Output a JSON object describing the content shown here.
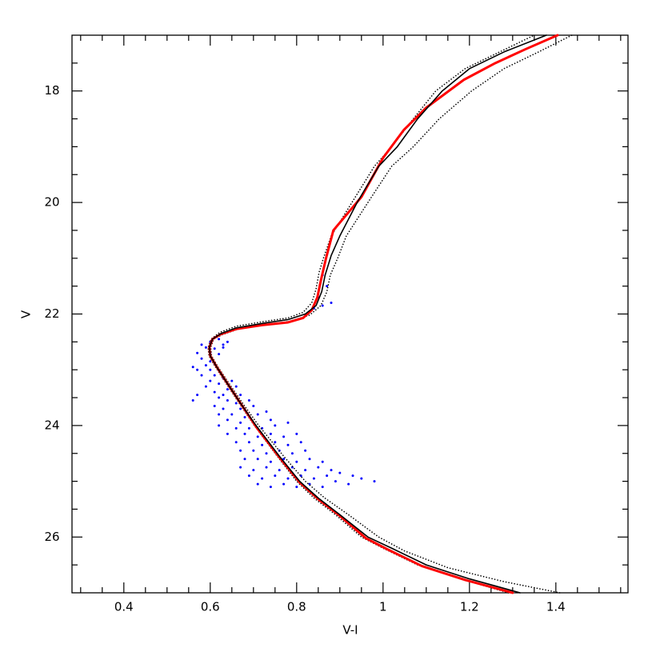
{
  "chart_data": {
    "type": "scatter",
    "x_label": "V-I",
    "y_label": "V",
    "xlim": [
      0.28,
      1.567
    ],
    "ylim": [
      27,
      17
    ],
    "xticks": [
      0.4,
      0.6,
      0.8,
      1,
      1.2,
      1.4
    ],
    "yticks": [
      18,
      20,
      22,
      24,
      26
    ],
    "xminorticks": [
      0.3,
      0.35,
      0.45,
      0.5,
      0.55,
      0.65,
      0.7,
      0.75,
      0.85,
      0.9,
      0.95,
      1.05,
      1.1,
      1.15,
      1.25,
      1.3,
      1.35,
      1.45,
      1.5,
      1.55
    ],
    "yminorticks": [
      17.5,
      18.5,
      19,
      19.5,
      20.5,
      21,
      21.5,
      22.5,
      23,
      23.5,
      24.5,
      25,
      25.5,
      26.5
    ],
    "series": [
      {
        "type": "scatter",
        "color": "#0000ff",
        "x": [
          0.58,
          0.6,
          0.62,
          0.59,
          0.61,
          0.63,
          0.57,
          0.6,
          0.62,
          0.58,
          0.6,
          0.56,
          0.59,
          0.61,
          0.63,
          0.64,
          0.57,
          0.6,
          0.58,
          0.61,
          0.63,
          0.6,
          0.62,
          0.65,
          0.59,
          0.64,
          0.66,
          0.57,
          0.61,
          0.63,
          0.67,
          0.56,
          0.62,
          0.64,
          0.66,
          0.69,
          0.61,
          0.63,
          0.67,
          0.7,
          0.62,
          0.65,
          0.68,
          0.71,
          0.73,
          0.64,
          0.67,
          0.7,
          0.74,
          0.62,
          0.66,
          0.69,
          0.72,
          0.75,
          0.78,
          0.64,
          0.68,
          0.71,
          0.74,
          0.77,
          0.8,
          0.66,
          0.69,
          0.72,
          0.75,
          0.78,
          0.81,
          0.67,
          0.7,
          0.73,
          0.76,
          0.79,
          0.82,
          0.68,
          0.71,
          0.74,
          0.77,
          0.8,
          0.83,
          0.86,
          0.67,
          0.7,
          0.73,
          0.76,
          0.79,
          0.82,
          0.85,
          0.88,
          0.69,
          0.72,
          0.75,
          0.78,
          0.81,
          0.84,
          0.87,
          0.9,
          0.93,
          0.71,
          0.74,
          0.77,
          0.8,
          0.83,
          0.86,
          0.89,
          0.92,
          0.95,
          0.98,
          0.86,
          0.87,
          0.85,
          0.88,
          0.86,
          0.84
        ],
        "y": [
          22.55,
          22.5,
          22.45,
          22.6,
          22.62,
          22.55,
          22.7,
          22.7,
          22.72,
          22.8,
          22.85,
          22.95,
          22.92,
          22.9,
          22.6,
          22.5,
          23.0,
          23.0,
          23.1,
          23.1,
          23.15,
          23.2,
          23.25,
          23.2,
          23.3,
          23.35,
          23.3,
          23.45,
          23.4,
          23.45,
          23.45,
          23.55,
          23.5,
          23.55,
          23.6,
          23.55,
          23.65,
          23.7,
          23.7,
          23.65,
          23.8,
          23.8,
          23.85,
          23.8,
          23.75,
          23.9,
          23.95,
          23.95,
          23.9,
          24.0,
          24.05,
          24.05,
          24.05,
          24.0,
          23.95,
          24.15,
          24.15,
          24.2,
          24.15,
          24.2,
          24.15,
          24.3,
          24.3,
          24.35,
          24.3,
          24.35,
          24.3,
          24.45,
          24.45,
          24.5,
          24.45,
          24.5,
          24.45,
          24.6,
          24.6,
          24.65,
          24.6,
          24.65,
          24.6,
          24.65,
          24.75,
          24.8,
          24.75,
          24.8,
          24.75,
          24.8,
          24.75,
          24.8,
          24.9,
          24.95,
          24.9,
          24.95,
          24.9,
          24.95,
          24.9,
          24.85,
          24.9,
          25.05,
          25.1,
          25.05,
          25.1,
          25.05,
          25.1,
          25.0,
          25.05,
          24.95,
          25.0,
          21.3,
          21.5,
          21.7,
          21.8,
          21.85,
          21.9
        ]
      },
      {
        "type": "line",
        "color": "#000000",
        "linestyle": "dotted",
        "linewidth": 1.6,
        "x": [
          1.29,
          1.18,
          1.08,
          1.0,
          0.95,
          0.89,
          0.84,
          0.8,
          0.755,
          0.702,
          0.667,
          0.637,
          0.612,
          0.597,
          0.595,
          0.602,
          0.622,
          0.66,
          0.72,
          0.78,
          0.815,
          0.835,
          0.845,
          0.852,
          0.862,
          0.88,
          0.928,
          0.98,
          1.02,
          1.07,
          1.122,
          1.19,
          1.27,
          1.35
        ],
        "y": [
          27.0,
          26.75,
          26.5,
          26.2,
          26.0,
          25.6,
          25.3,
          25.0,
          24.55,
          24.0,
          23.6,
          23.25,
          22.95,
          22.75,
          22.6,
          22.45,
          22.33,
          22.22,
          22.14,
          22.07,
          21.97,
          21.8,
          21.55,
          21.25,
          21.0,
          20.6,
          20.0,
          19.35,
          19.0,
          18.5,
          18.0,
          17.6,
          17.3,
          17.0
        ]
      },
      {
        "type": "line",
        "color": "#000000",
        "linestyle": "dotted",
        "linewidth": 1.6,
        "x": [
          1.409,
          1.28,
          1.15,
          1.05,
          0.99,
          0.92,
          0.865,
          0.82,
          0.77,
          0.712,
          0.675,
          0.644,
          0.618,
          0.603,
          0.601,
          0.608,
          0.628,
          0.665,
          0.725,
          0.785,
          0.83,
          0.856,
          0.87,
          0.878,
          0.895,
          0.915,
          0.965,
          1.02,
          1.07,
          1.13,
          1.205,
          1.28,
          1.36,
          1.437
        ],
        "y": [
          27.0,
          26.8,
          26.55,
          26.25,
          26.0,
          25.6,
          25.3,
          25.0,
          24.55,
          24.0,
          23.6,
          23.25,
          22.95,
          22.75,
          22.6,
          22.45,
          22.37,
          22.27,
          22.2,
          22.13,
          22.02,
          21.85,
          21.6,
          21.3,
          21.0,
          20.6,
          20.0,
          19.35,
          19.0,
          18.5,
          18.0,
          17.6,
          17.3,
          17.0
        ]
      },
      {
        "type": "line",
        "color": "#ff0000",
        "linestyle": "solid",
        "linewidth": 3,
        "x": [
          1.3,
          1.19,
          1.09,
          1.01,
          0.96,
          0.9,
          0.85,
          0.807,
          0.76,
          0.706,
          0.67,
          0.64,
          0.615,
          0.6,
          0.598,
          0.605,
          0.625,
          0.66,
          0.72,
          0.78,
          0.815,
          0.835,
          0.848,
          0.856,
          0.868,
          0.885,
          0.95,
          1.0,
          1.048,
          1.1,
          1.187,
          1.26,
          1.33,
          1.404
        ],
        "y": [
          27.0,
          26.77,
          26.52,
          26.22,
          26.02,
          25.62,
          25.32,
          25.02,
          24.57,
          24.02,
          23.6,
          23.25,
          22.95,
          22.75,
          22.6,
          22.45,
          22.36,
          22.27,
          22.2,
          22.15,
          22.07,
          21.93,
          21.7,
          21.4,
          21.0,
          20.5,
          19.9,
          19.2,
          18.7,
          18.3,
          17.8,
          17.5,
          17.25,
          17.0
        ]
      },
      {
        "type": "line",
        "color": "#000000",
        "linestyle": "solid",
        "linewidth": 1.6,
        "x": [
          1.317,
          1.2,
          1.1,
          1.02,
          0.965,
          0.9,
          0.85,
          0.807,
          0.76,
          0.706,
          0.67,
          0.64,
          0.615,
          0.6,
          0.598,
          0.605,
          0.625,
          0.66,
          0.72,
          0.78,
          0.82,
          0.845,
          0.858,
          0.866,
          0.88,
          0.9,
          0.94,
          0.99,
          1.033,
          1.08,
          1.137,
          1.2,
          1.28,
          1.378
        ],
        "y": [
          27.0,
          26.75,
          26.5,
          26.2,
          26.0,
          25.6,
          25.3,
          25.0,
          24.55,
          24.0,
          23.6,
          23.25,
          22.95,
          22.75,
          22.6,
          22.45,
          22.35,
          22.25,
          22.17,
          22.1,
          22.0,
          21.85,
          21.6,
          21.3,
          20.95,
          20.6,
          20.0,
          19.35,
          19.0,
          18.5,
          18.0,
          17.6,
          17.3,
          17.0
        ]
      }
    ]
  }
}
